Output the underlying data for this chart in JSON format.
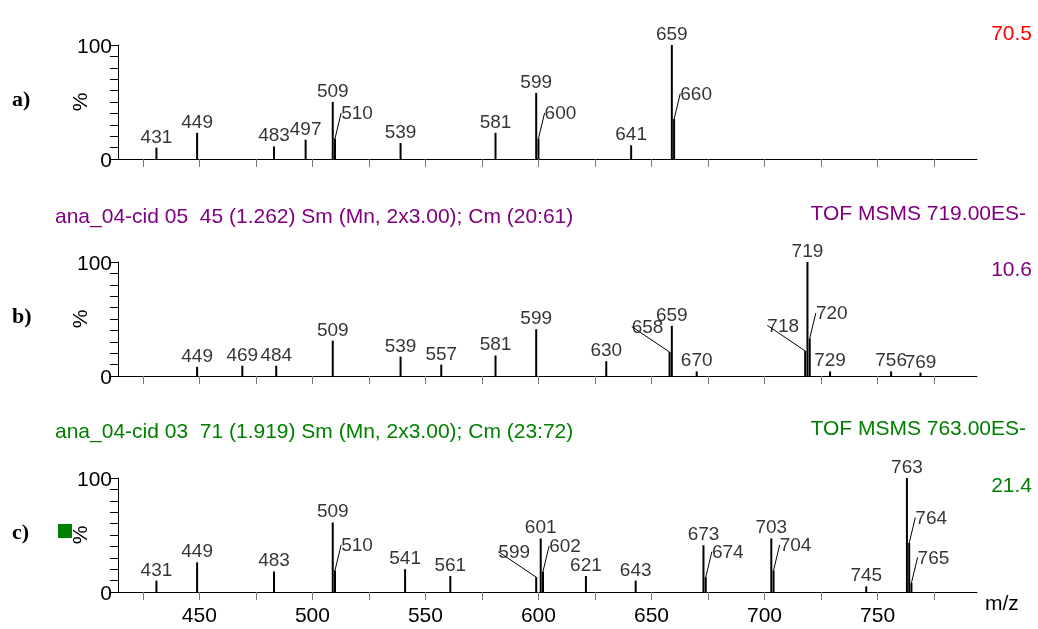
{
  "chart_data": [
    {
      "type": "bar",
      "ylabel": "%",
      "annotations": [
        "a)",
        "70.5",
        {
          "text": "431",
          "x": 431,
          "y": 10
        },
        {
          "text": "449",
          "x": 449,
          "y": 23
        },
        {
          "text": "483",
          "x": 483,
          "y": 11
        },
        {
          "text": "497",
          "x": 497,
          "y": 17
        },
        {
          "text": "509",
          "x": 509,
          "y": 50
        },
        {
          "text": "510",
          "x": 510,
          "y": 18
        },
        {
          "text": "539",
          "x": 539,
          "y": 14
        },
        {
          "text": "581",
          "x": 581,
          "y": 23
        },
        {
          "text": "599",
          "x": 599,
          "y": 58
        },
        {
          "text": "600",
          "x": 600,
          "y": 18
        },
        {
          "text": "641",
          "x": 641,
          "y": 12
        },
        {
          "text": "659",
          "x": 659,
          "y": 100
        },
        {
          "text": "660",
          "x": 660,
          "y": 35
        }
      ],
      "xlim": [
        414,
        794
      ],
      "xticks": [
        {
          "value": 425,
          "label": null
        },
        {
          "value": 450,
          "label": null
        },
        {
          "value": 475,
          "label": null
        },
        {
          "value": 500,
          "label": null
        },
        {
          "value": 525,
          "label": null
        },
        {
          "value": 550,
          "label": null
        },
        {
          "value": 575,
          "label": null
        },
        {
          "value": 600,
          "label": null
        },
        {
          "value": 625,
          "label": null
        },
        {
          "value": 650,
          "label": null
        },
        {
          "value": 675,
          "label": null
        },
        {
          "value": 700,
          "label": null
        },
        {
          "value": 725,
          "label": null
        },
        {
          "value": 750,
          "label": null
        },
        {
          "value": 775,
          "label": null
        }
      ],
      "ylim": [
        0,
        100
      ],
      "yticks": [
        {
          "value": 0,
          "label": "0"
        },
        {
          "value": 10,
          "label": null
        },
        {
          "value": 20,
          "label": null
        },
        {
          "value": 30,
          "label": null
        },
        {
          "value": 40,
          "label": null
        },
        {
          "value": 50,
          "label": null
        },
        {
          "value": 60,
          "label": null
        },
        {
          "value": 70,
          "label": null
        },
        {
          "value": 80,
          "label": null
        },
        {
          "value": 90,
          "label": null
        },
        {
          "value": 100,
          "label": "100"
        }
      ],
      "tick_labels": "y",
      "grid": false,
      "color": "#000000",
      "x": [
        431,
        449,
        483,
        497,
        509,
        510,
        539,
        581,
        599,
        600,
        641,
        659,
        660
      ],
      "values": [
        10,
        23,
        11,
        17,
        50,
        18,
        14,
        23,
        58,
        18,
        12,
        100,
        35
      ]
    },
    {
      "type": "bar",
      "title": "ana_04-cid 05  45 (1.262) Sm (Mn, 2x3.00); Cm (20:61)",
      "ylabel": "%",
      "annotations": [
        "b)",
        "TOF MSMS 719.00ES-",
        "10.6",
        {
          "text": "449",
          "x": 449,
          "y": 8
        },
        {
          "text": "469",
          "x": 469,
          "y": 9
        },
        {
          "text": "484",
          "x": 484,
          "y": 9
        },
        {
          "text": "509",
          "x": 509,
          "y": 31
        },
        {
          "text": "539",
          "x": 539,
          "y": 17
        },
        {
          "text": "557",
          "x": 557,
          "y": 10
        },
        {
          "text": "581",
          "x": 581,
          "y": 18
        },
        {
          "text": "599",
          "x": 599,
          "y": 41
        },
        {
          "text": "630",
          "x": 630,
          "y": 13
        },
        {
          "text": "658",
          "x": 658,
          "y": 21
        },
        {
          "text": "659",
          "x": 659,
          "y": 44
        },
        {
          "text": "670",
          "x": 670,
          "y": 4
        },
        {
          "text": "718",
          "x": 718,
          "y": 22
        },
        {
          "text": "719",
          "x": 719,
          "y": 100
        },
        {
          "text": "720",
          "x": 720,
          "y": 33
        },
        {
          "text": "729",
          "x": 729,
          "y": 4
        },
        {
          "text": "756",
          "x": 756,
          "y": 4
        },
        {
          "text": "769",
          "x": 769,
          "y": 3
        }
      ],
      "xlim": [
        414,
        794
      ],
      "xticks": [
        {
          "value": 425,
          "label": null
        },
        {
          "value": 450,
          "label": null
        },
        {
          "value": 475,
          "label": null
        },
        {
          "value": 500,
          "label": null
        },
        {
          "value": 525,
          "label": null
        },
        {
          "value": 550,
          "label": null
        },
        {
          "value": 575,
          "label": null
        },
        {
          "value": 600,
          "label": null
        },
        {
          "value": 625,
          "label": null
        },
        {
          "value": 650,
          "label": null
        },
        {
          "value": 675,
          "label": null
        },
        {
          "value": 700,
          "label": null
        },
        {
          "value": 725,
          "label": null
        },
        {
          "value": 750,
          "label": null
        },
        {
          "value": 775,
          "label": null
        }
      ],
      "ylim": [
        0,
        100
      ],
      "yticks": [
        {
          "value": 0,
          "label": "0"
        },
        {
          "value": 10,
          "label": null
        },
        {
          "value": 20,
          "label": null
        },
        {
          "value": 30,
          "label": null
        },
        {
          "value": 40,
          "label": null
        },
        {
          "value": 50,
          "label": null
        },
        {
          "value": 60,
          "label": null
        },
        {
          "value": 70,
          "label": null
        },
        {
          "value": 80,
          "label": null
        },
        {
          "value": 90,
          "label": null
        },
        {
          "value": 100,
          "label": "100"
        }
      ],
      "tick_labels": "y",
      "grid": false,
      "color": "#000000",
      "x": [
        449,
        469,
        484,
        509,
        539,
        557,
        581,
        599,
        630,
        658,
        659,
        670,
        718,
        719,
        720,
        729,
        756,
        769
      ],
      "values": [
        8,
        9,
        9,
        31,
        17,
        10,
        18,
        41,
        13,
        21,
        44,
        4,
        22,
        100,
        33,
        4,
        4,
        3
      ]
    },
    {
      "type": "bar",
      "title": "ana_04-cid 03  71 (1.919) Sm (Mn, 2x3.00); Cm (23:72)",
      "xlabel": "m/z",
      "ylabel": "%",
      "annotations": [
        "c)",
        "TOF MSMS 763.00ES-",
        "21.4",
        {
          "text": "431",
          "x": 431,
          "y": 10
        },
        {
          "text": "449",
          "x": 449,
          "y": 26
        },
        {
          "text": "483",
          "x": 483,
          "y": 18
        },
        {
          "text": "509",
          "x": 509,
          "y": 61
        },
        {
          "text": "510",
          "x": 510,
          "y": 19
        },
        {
          "text": "541",
          "x": 541,
          "y": 20
        },
        {
          "text": "561",
          "x": 561,
          "y": 14
        },
        {
          "text": "599",
          "x": 599,
          "y": 13
        },
        {
          "text": "601",
          "x": 601,
          "y": 47
        },
        {
          "text": "602",
          "x": 602,
          "y": 18
        },
        {
          "text": "621",
          "x": 621,
          "y": 14
        },
        {
          "text": "643",
          "x": 643,
          "y": 10
        },
        {
          "text": "673",
          "x": 673,
          "y": 41
        },
        {
          "text": "674",
          "x": 674,
          "y": 13
        },
        {
          "text": "703",
          "x": 703,
          "y": 47
        },
        {
          "text": "704",
          "x": 704,
          "y": 19
        },
        {
          "text": "745",
          "x": 745,
          "y": 5
        },
        {
          "text": "763",
          "x": 763,
          "y": 100
        },
        {
          "text": "764",
          "x": 764,
          "y": 43
        },
        {
          "text": "765",
          "x": 765,
          "y": 8
        }
      ],
      "xlim": [
        414,
        794
      ],
      "xticks": [
        {
          "value": 425,
          "label": null
        },
        {
          "value": 450,
          "label": "450"
        },
        {
          "value": 475,
          "label": null
        },
        {
          "value": 500,
          "label": "500"
        },
        {
          "value": 525,
          "label": null
        },
        {
          "value": 550,
          "label": "550"
        },
        {
          "value": 575,
          "label": null
        },
        {
          "value": 600,
          "label": "600"
        },
        {
          "value": 625,
          "label": null
        },
        {
          "value": 650,
          "label": "650"
        },
        {
          "value": 675,
          "label": null
        },
        {
          "value": 700,
          "label": "700"
        },
        {
          "value": 725,
          "label": null
        },
        {
          "value": 750,
          "label": "750"
        },
        {
          "value": 775,
          "label": null
        }
      ],
      "ylim": [
        0,
        100
      ],
      "yticks": [
        {
          "value": 0,
          "label": "0"
        },
        {
          "value": 10,
          "label": null
        },
        {
          "value": 20,
          "label": null
        },
        {
          "value": 30,
          "label": null
        },
        {
          "value": 40,
          "label": null
        },
        {
          "value": 50,
          "label": null
        },
        {
          "value": 60,
          "label": null
        },
        {
          "value": 70,
          "label": null
        },
        {
          "value": 80,
          "label": null
        },
        {
          "value": 90,
          "label": null
        },
        {
          "value": 100,
          "label": "100"
        }
      ],
      "grid": false,
      "color": "#000000",
      "x": [
        431,
        449,
        483,
        509,
        510,
        541,
        561,
        599,
        601,
        602,
        621,
        643,
        673,
        674,
        703,
        704,
        745,
        763,
        764,
        765
      ],
      "values": [
        10,
        26,
        18,
        61,
        19,
        20,
        14,
        13,
        47,
        18,
        14,
        10,
        41,
        13,
        47,
        19,
        5,
        100,
        43,
        8
      ]
    }
  ]
}
